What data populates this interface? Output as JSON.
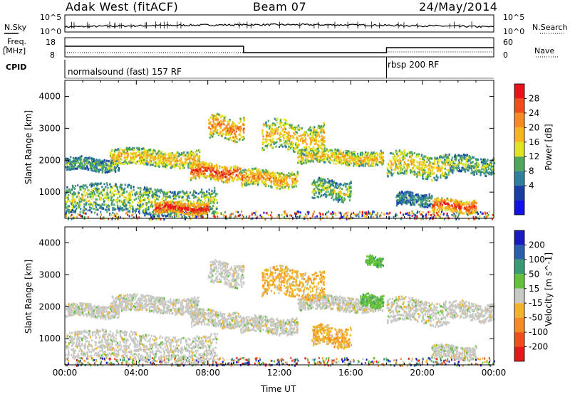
{
  "header": {
    "title": "Adak West (fitACF)",
    "beam": "Beam 07",
    "date": "24/May/2014"
  },
  "sky_panel": {
    "left_label": "N.Sky",
    "right_label": "N.Search",
    "left_ticks": [
      "10^5",
      "10^0"
    ],
    "right_ticks": [
      "10^5",
      "10^0"
    ]
  },
  "freq_panel": {
    "left_label_line1": "Freq.",
    "left_label_line2": "[MHz]",
    "right_label": "Nave",
    "left_ticks": [
      "18",
      "8"
    ],
    "right_ticks": [
      "60",
      "0"
    ]
  },
  "cpid_panel": {
    "label": "CPID",
    "segments": [
      {
        "text": "normalsound (fast) 157 RF",
        "start_hour": 0
      },
      {
        "text": "rbsp 200 RF",
        "start_hour": 18
      }
    ]
  },
  "chart_data": [
    {
      "type": "heatmap",
      "name": "power",
      "ylabel": "Slant Range [km]",
      "xlabel": "Time UT",
      "x_ticks": [
        "00:00",
        "04:00",
        "08:00",
        "12:00",
        "16:00",
        "20:00",
        "00:00"
      ],
      "xlim_hours": [
        0,
        24
      ],
      "y_ticks": [
        1000,
        2000,
        3000,
        4000
      ],
      "ylim": [
        180,
        4500
      ],
      "colorbar": {
        "label": "Power [dB]",
        "ticks": [
          "28",
          "24",
          "20",
          "16",
          "12",
          "8",
          "4"
        ],
        "colors": [
          "#e8141a",
          "#ef4d1c",
          "#f58a1d",
          "#f7b421",
          "#dfe323",
          "#4fa75b",
          "#2f7f9e",
          "#1a3fa4",
          "#1212e8"
        ]
      },
      "bands": [
        {
          "t0": 0.0,
          "t1": 3.0,
          "r0": 1700,
          "r1": 2100,
          "level": 0.35
        },
        {
          "t0": 2.5,
          "t1": 7.5,
          "r0": 1850,
          "r1": 2350,
          "level": 0.6
        },
        {
          "t0": 7.0,
          "t1": 9.8,
          "r0": 1400,
          "r1": 1900,
          "level": 0.85
        },
        {
          "t0": 9.8,
          "t1": 13.0,
          "r0": 1200,
          "r1": 1700,
          "level": 0.7
        },
        {
          "t0": 13.0,
          "t1": 17.8,
          "r0": 1900,
          "r1": 2350,
          "level": 0.6
        },
        {
          "t0": 18.0,
          "t1": 21.5,
          "r0": 1500,
          "r1": 2250,
          "level": 0.55
        },
        {
          "t0": 21.5,
          "t1": 24.0,
          "r0": 1600,
          "r1": 2150,
          "level": 0.4
        },
        {
          "t0": 0.0,
          "t1": 8.5,
          "r0": 350,
          "r1": 1200,
          "level": 0.45
        },
        {
          "t0": 5.0,
          "t1": 8.0,
          "r0": 350,
          "r1": 700,
          "level": 0.95
        },
        {
          "t0": 11.0,
          "t1": 14.5,
          "r0": 2300,
          "r1": 3200,
          "level": 0.6
        },
        {
          "t0": 8.0,
          "t1": 10.0,
          "r0": 2700,
          "r1": 3400,
          "level": 0.75
        },
        {
          "t0": 13.8,
          "t1": 16.0,
          "r0": 800,
          "r1": 1400,
          "level": 0.45
        },
        {
          "t0": 20.5,
          "t1": 23.0,
          "r0": 400,
          "r1": 800,
          "level": 0.85
        },
        {
          "t0": 18.5,
          "t1": 20.5,
          "r0": 600,
          "r1": 1000,
          "level": 0.3
        }
      ]
    },
    {
      "type": "heatmap",
      "name": "velocity",
      "ylabel": "Slant Range [km]",
      "xlabel": "Time UT",
      "x_ticks": [
        "00:00",
        "04:00",
        "08:00",
        "12:00",
        "16:00",
        "20:00",
        "00:00"
      ],
      "xlim_hours": [
        0,
        24
      ],
      "y_ticks": [
        1000,
        2000,
        3000,
        4000
      ],
      "ylim": [
        180,
        4500
      ],
      "colorbar": {
        "label": "Velocity [m s^-1]",
        "ticks": [
          "200",
          "100",
          "50",
          "15",
          "-15",
          "-50",
          "-100",
          "-200"
        ],
        "colors": [
          "#1a1ac0",
          "#2a5fae",
          "#3a9a74",
          "#62c03a",
          "#c8c8c4",
          "#f2b229",
          "#f58a1d",
          "#ef4d1c",
          "#e41a1a"
        ]
      },
      "bands": [
        {
          "t0": 0.0,
          "t1": 3.0,
          "r0": 1700,
          "r1": 2100,
          "level": "gray"
        },
        {
          "t0": 2.5,
          "t1": 7.5,
          "r0": 1850,
          "r1": 2350,
          "level": "gray"
        },
        {
          "t0": 7.0,
          "t1": 9.8,
          "r0": 1400,
          "r1": 1900,
          "level": "gray"
        },
        {
          "t0": 9.8,
          "t1": 13.0,
          "r0": 1200,
          "r1": 1700,
          "level": "gray"
        },
        {
          "t0": 13.0,
          "t1": 17.8,
          "r0": 1900,
          "r1": 2350,
          "level": "gray"
        },
        {
          "t0": 18.0,
          "t1": 21.5,
          "r0": 1500,
          "r1": 2250,
          "level": "gray"
        },
        {
          "t0": 21.5,
          "t1": 24.0,
          "r0": 1600,
          "r1": 2150,
          "level": "gray"
        },
        {
          "t0": 0.0,
          "t1": 8.5,
          "r0": 350,
          "r1": 1200,
          "level": "gray"
        },
        {
          "t0": 13.8,
          "t1": 16.0,
          "r0": 800,
          "r1": 1400,
          "level": "orange"
        },
        {
          "t0": 11.0,
          "t1": 14.5,
          "r0": 2300,
          "r1": 3200,
          "level": "orange"
        },
        {
          "t0": 16.5,
          "t1": 17.8,
          "r0": 2000,
          "r1": 2400,
          "level": "green"
        },
        {
          "t0": 16.8,
          "t1": 17.8,
          "r0": 3300,
          "r1": 3600,
          "level": "green"
        },
        {
          "t0": 8.0,
          "t1": 10.0,
          "r0": 2700,
          "r1": 3400,
          "level": "gray"
        },
        {
          "t0": 20.5,
          "t1": 23.0,
          "r0": 400,
          "r1": 800,
          "level": "gray"
        }
      ]
    }
  ]
}
